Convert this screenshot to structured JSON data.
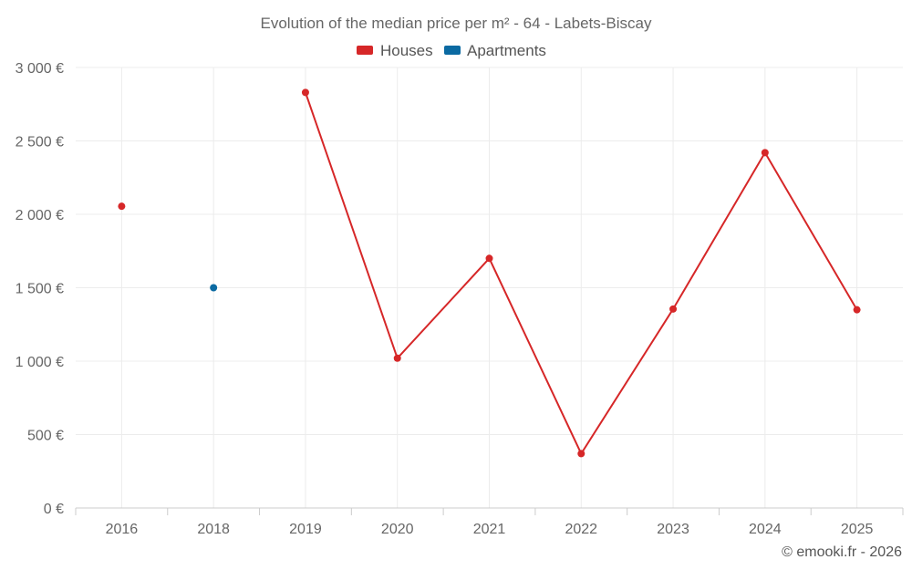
{
  "chart_data": {
    "type": "line",
    "title": "Evolution of the median price per m² - 64 - Labets-Biscay",
    "categories": [
      "2016",
      "2018",
      "2019",
      "2020",
      "2021",
      "2022",
      "2023",
      "2024",
      "2025"
    ],
    "ylim": [
      0,
      3000
    ],
    "yticks": [
      0,
      500,
      1000,
      1500,
      2000,
      2500,
      3000
    ],
    "ytick_labels": [
      "0 €",
      "500 €",
      "1 000 €",
      "1 500 €",
      "2 000 €",
      "2 500 €",
      "3 000 €"
    ],
    "grid": true,
    "legend_position": "top-center",
    "series": [
      {
        "name": "Houses",
        "color": "#d62728",
        "values": [
          2055,
          null,
          2830,
          1020,
          1700,
          370,
          1355,
          2420,
          1350
        ]
      },
      {
        "name": "Apartments",
        "color": "#0b6aa2",
        "values": [
          null,
          1500,
          null,
          null,
          null,
          null,
          null,
          null,
          null
        ]
      }
    ],
    "credit": "© emooki.fr - 2026"
  }
}
